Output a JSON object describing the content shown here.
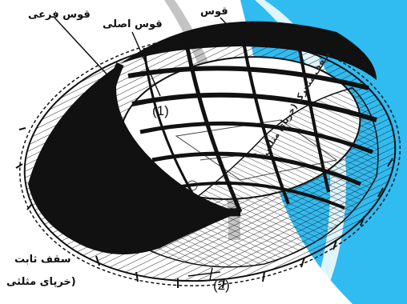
{
  "diagram": {
    "labels": {
      "secondary_arch": "قوس فرعی",
      "main_arch": "قوس اصلی",
      "arch": "قوس",
      "fixed_roof_line1": "سقف ثابت",
      "fixed_roof_line2": "(خرپای مثلثی",
      "marker_1": "(1)",
      "marker_2": "(2)",
      "movable_roof": "سقف متحرک (خرپای مثلثی"
    },
    "colors": {
      "ink": "#111111",
      "hatch": "#2a2a2a",
      "watermark_blue": "#1fb6f0",
      "watermark_gray": "#8a8a8a"
    }
  }
}
